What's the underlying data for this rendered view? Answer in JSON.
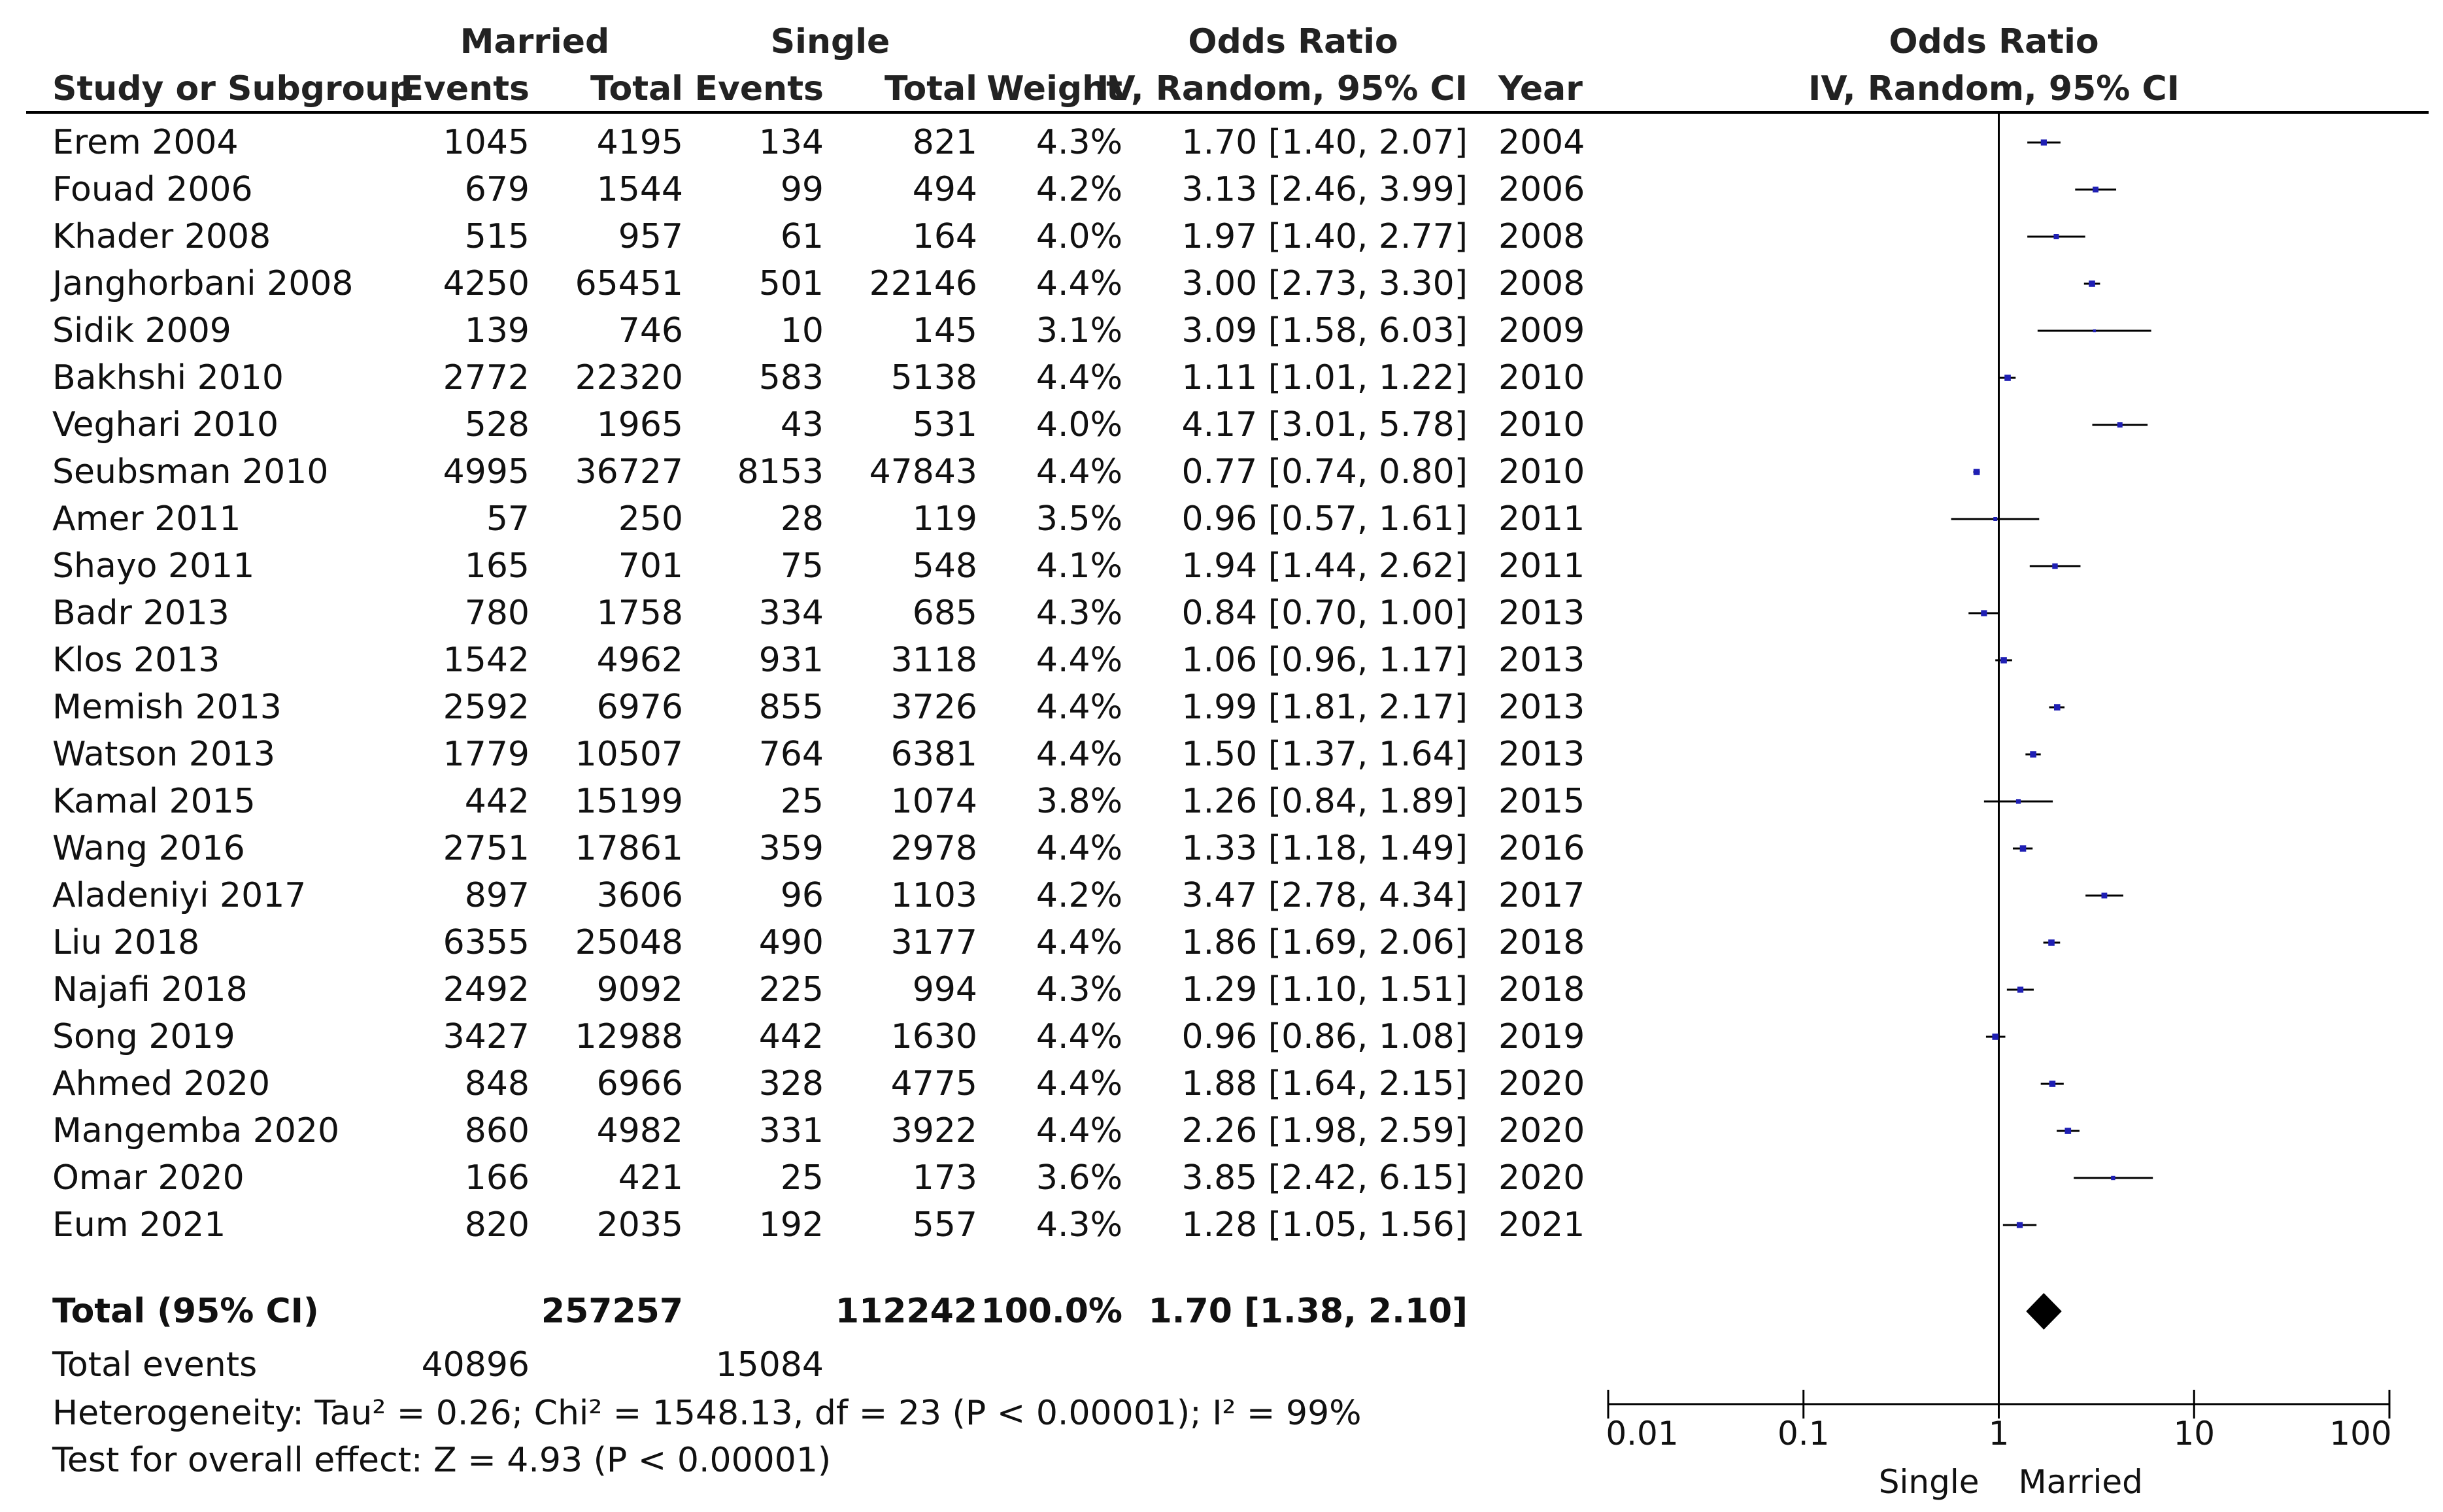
{
  "table": {
    "group_headers": {
      "married": "Married",
      "single": "Single",
      "odds_ratio": "Odds Ratio",
      "plot_odds_ratio": "Odds Ratio"
    },
    "columns": {
      "study": "Study or Subgroup",
      "m_events": "Events",
      "m_total": "Total",
      "s_events": "Events",
      "s_total": "Total",
      "weight": "Weight",
      "or_method": "IV, Random, 95% CI",
      "year": "Year",
      "plot_method": "IV, Random, 95% CI"
    },
    "rows": [
      {
        "study": "Erem 2004",
        "m_events": "1045",
        "m_total": "4195",
        "s_events": "134",
        "s_total": "821",
        "weight": "4.3%",
        "ci": "1.70 [1.40, 2.07]",
        "year": "2004"
      },
      {
        "study": "Fouad 2006",
        "m_events": "679",
        "m_total": "1544",
        "s_events": "99",
        "s_total": "494",
        "weight": "4.2%",
        "ci": "3.13 [2.46, 3.99]",
        "year": "2006"
      },
      {
        "study": "Khader 2008",
        "m_events": "515",
        "m_total": "957",
        "s_events": "61",
        "s_total": "164",
        "weight": "4.0%",
        "ci": "1.97 [1.40, 2.77]",
        "year": "2008"
      },
      {
        "study": "Janghorbani 2008",
        "m_events": "4250",
        "m_total": "65451",
        "s_events": "501",
        "s_total": "22146",
        "weight": "4.4%",
        "ci": "3.00 [2.73, 3.30]",
        "year": "2008"
      },
      {
        "study": "Sidik 2009",
        "m_events": "139",
        "m_total": "746",
        "s_events": "10",
        "s_total": "145",
        "weight": "3.1%",
        "ci": "3.09 [1.58, 6.03]",
        "year": "2009"
      },
      {
        "study": "Bakhshi 2010",
        "m_events": "2772",
        "m_total": "22320",
        "s_events": "583",
        "s_total": "5138",
        "weight": "4.4%",
        "ci": "1.11 [1.01, 1.22]",
        "year": "2010"
      },
      {
        "study": "Veghari 2010",
        "m_events": "528",
        "m_total": "1965",
        "s_events": "43",
        "s_total": "531",
        "weight": "4.0%",
        "ci": "4.17 [3.01, 5.78]",
        "year": "2010"
      },
      {
        "study": "Seubsman 2010",
        "m_events": "4995",
        "m_total": "36727",
        "s_events": "8153",
        "s_total": "47843",
        "weight": "4.4%",
        "ci": "0.77 [0.74, 0.80]",
        "year": "2010"
      },
      {
        "study": "Amer 2011",
        "m_events": "57",
        "m_total": "250",
        "s_events": "28",
        "s_total": "119",
        "weight": "3.5%",
        "ci": "0.96 [0.57, 1.61]",
        "year": "2011"
      },
      {
        "study": "Shayo 2011",
        "m_events": "165",
        "m_total": "701",
        "s_events": "75",
        "s_total": "548",
        "weight": "4.1%",
        "ci": "1.94 [1.44, 2.62]",
        "year": "2011"
      },
      {
        "study": "Badr 2013",
        "m_events": "780",
        "m_total": "1758",
        "s_events": "334",
        "s_total": "685",
        "weight": "4.3%",
        "ci": "0.84 [0.70, 1.00]",
        "year": "2013"
      },
      {
        "study": "Klos 2013",
        "m_events": "1542",
        "m_total": "4962",
        "s_events": "931",
        "s_total": "3118",
        "weight": "4.4%",
        "ci": "1.06 [0.96, 1.17]",
        "year": "2013"
      },
      {
        "study": "Memish 2013",
        "m_events": "2592",
        "m_total": "6976",
        "s_events": "855",
        "s_total": "3726",
        "weight": "4.4%",
        "ci": "1.99 [1.81, 2.17]",
        "year": "2013"
      },
      {
        "study": "Watson 2013",
        "m_events": "1779",
        "m_total": "10507",
        "s_events": "764",
        "s_total": "6381",
        "weight": "4.4%",
        "ci": "1.50 [1.37, 1.64]",
        "year": "2013"
      },
      {
        "study": "Kamal 2015",
        "m_events": "442",
        "m_total": "15199",
        "s_events": "25",
        "s_total": "1074",
        "weight": "3.8%",
        "ci": "1.26 [0.84, 1.89]",
        "year": "2015"
      },
      {
        "study": "Wang 2016",
        "m_events": "2751",
        "m_total": "17861",
        "s_events": "359",
        "s_total": "2978",
        "weight": "4.4%",
        "ci": "1.33 [1.18, 1.49]",
        "year": "2016"
      },
      {
        "study": "Aladeniyi 2017",
        "m_events": "897",
        "m_total": "3606",
        "s_events": "96",
        "s_total": "1103",
        "weight": "4.2%",
        "ci": "3.47 [2.78, 4.34]",
        "year": "2017"
      },
      {
        "study": "Liu 2018",
        "m_events": "6355",
        "m_total": "25048",
        "s_events": "490",
        "s_total": "3177",
        "weight": "4.4%",
        "ci": "1.86 [1.69, 2.06]",
        "year": "2018"
      },
      {
        "study": "Najafi 2018",
        "m_events": "2492",
        "m_total": "9092",
        "s_events": "225",
        "s_total": "994",
        "weight": "4.3%",
        "ci": "1.29 [1.10, 1.51]",
        "year": "2018"
      },
      {
        "study": "Song 2019",
        "m_events": "3427",
        "m_total": "12988",
        "s_events": "442",
        "s_total": "1630",
        "weight": "4.4%",
        "ci": "0.96 [0.86, 1.08]",
        "year": "2019"
      },
      {
        "study": "Ahmed 2020",
        "m_events": "848",
        "m_total": "6966",
        "s_events": "328",
        "s_total": "4775",
        "weight": "4.4%",
        "ci": "1.88 [1.64, 2.15]",
        "year": "2020"
      },
      {
        "study": "Mangemba 2020",
        "m_events": "860",
        "m_total": "4982",
        "s_events": "331",
        "s_total": "3922",
        "weight": "4.4%",
        "ci": "2.26 [1.98, 2.59]",
        "year": "2020"
      },
      {
        "study": "Omar 2020",
        "m_events": "166",
        "m_total": "421",
        "s_events": "25",
        "s_total": "173",
        "weight": "3.6%",
        "ci": "3.85 [2.42, 6.15]",
        "year": "2020"
      },
      {
        "study": "Eum 2021",
        "m_events": "820",
        "m_total": "2035",
        "s_events": "192",
        "s_total": "557",
        "weight": "4.3%",
        "ci": "1.28 [1.05, 1.56]",
        "year": "2021"
      }
    ],
    "total": {
      "label": "Total (95% CI)",
      "m_total": "257257",
      "s_total": "112242",
      "weight": "100.0%",
      "ci": "1.70 [1.38, 2.10]"
    },
    "total_events": {
      "label": "Total events",
      "married": "40896",
      "single": "15084"
    },
    "heterogeneity": "Heterogeneity: Tau² = 0.26; Chi² = 1548.13, df = 23 (P < 0.00001); I² = 99%",
    "overall_effect": "Test for overall effect: Z = 4.93 (P < 0.00001)"
  },
  "chart_data": {
    "type": "forest",
    "title": "Odds Ratio",
    "subtitle": "IV, Random, 95% CI",
    "x_scale": "log",
    "xlim": [
      0.01,
      100
    ],
    "null_value": 1,
    "tick_labels": [
      "0.01",
      "0.1",
      "1",
      "10",
      "100"
    ],
    "ticks": [
      0.01,
      0.1,
      1,
      10,
      100
    ],
    "favours_left": "Single",
    "favours_right": "Married",
    "marker_color": "#1f1fb4",
    "studies": [
      {
        "name": "Erem 2004",
        "or": 1.7,
        "lo": 1.4,
        "hi": 2.07,
        "weight": 4.3
      },
      {
        "name": "Fouad 2006",
        "or": 3.13,
        "lo": 2.46,
        "hi": 3.99,
        "weight": 4.2
      },
      {
        "name": "Khader 2008",
        "or": 1.97,
        "lo": 1.4,
        "hi": 2.77,
        "weight": 4.0
      },
      {
        "name": "Janghorbani 2008",
        "or": 3.0,
        "lo": 2.73,
        "hi": 3.3,
        "weight": 4.4
      },
      {
        "name": "Sidik 2009",
        "or": 3.09,
        "lo": 1.58,
        "hi": 6.03,
        "weight": 3.1
      },
      {
        "name": "Bakhshi 2010",
        "or": 1.11,
        "lo": 1.01,
        "hi": 1.22,
        "weight": 4.4
      },
      {
        "name": "Veghari 2010",
        "or": 4.17,
        "lo": 3.01,
        "hi": 5.78,
        "weight": 4.0
      },
      {
        "name": "Seubsman 2010",
        "or": 0.77,
        "lo": 0.74,
        "hi": 0.8,
        "weight": 4.4
      },
      {
        "name": "Amer 2011",
        "or": 0.96,
        "lo": 0.57,
        "hi": 1.61,
        "weight": 3.5
      },
      {
        "name": "Shayo 2011",
        "or": 1.94,
        "lo": 1.44,
        "hi": 2.62,
        "weight": 4.1
      },
      {
        "name": "Badr 2013",
        "or": 0.84,
        "lo": 0.7,
        "hi": 1.0,
        "weight": 4.3
      },
      {
        "name": "Klos 2013",
        "or": 1.06,
        "lo": 0.96,
        "hi": 1.17,
        "weight": 4.4
      },
      {
        "name": "Memish 2013",
        "or": 1.99,
        "lo": 1.81,
        "hi": 2.17,
        "weight": 4.4
      },
      {
        "name": "Watson 2013",
        "or": 1.5,
        "lo": 1.37,
        "hi": 1.64,
        "weight": 4.4
      },
      {
        "name": "Kamal 2015",
        "or": 1.26,
        "lo": 0.84,
        "hi": 1.89,
        "weight": 3.8
      },
      {
        "name": "Wang 2016",
        "or": 1.33,
        "lo": 1.18,
        "hi": 1.49,
        "weight": 4.4
      },
      {
        "name": "Aladeniyi 2017",
        "or": 3.47,
        "lo": 2.78,
        "hi": 4.34,
        "weight": 4.2
      },
      {
        "name": "Liu 2018",
        "or": 1.86,
        "lo": 1.69,
        "hi": 2.06,
        "weight": 4.4
      },
      {
        "name": "Najafi 2018",
        "or": 1.29,
        "lo": 1.1,
        "hi": 1.51,
        "weight": 4.3
      },
      {
        "name": "Song 2019",
        "or": 0.96,
        "lo": 0.86,
        "hi": 1.08,
        "weight": 4.4
      },
      {
        "name": "Ahmed 2020",
        "or": 1.88,
        "lo": 1.64,
        "hi": 2.15,
        "weight": 4.4
      },
      {
        "name": "Mangemba 2020",
        "or": 2.26,
        "lo": 1.98,
        "hi": 2.59,
        "weight": 4.4
      },
      {
        "name": "Omar 2020",
        "or": 3.85,
        "lo": 2.42,
        "hi": 6.15,
        "weight": 3.6
      },
      {
        "name": "Eum 2021",
        "or": 1.28,
        "lo": 1.05,
        "hi": 1.56,
        "weight": 4.3
      }
    ],
    "pooled": {
      "or": 1.7,
      "lo": 1.38,
      "hi": 2.1
    }
  }
}
